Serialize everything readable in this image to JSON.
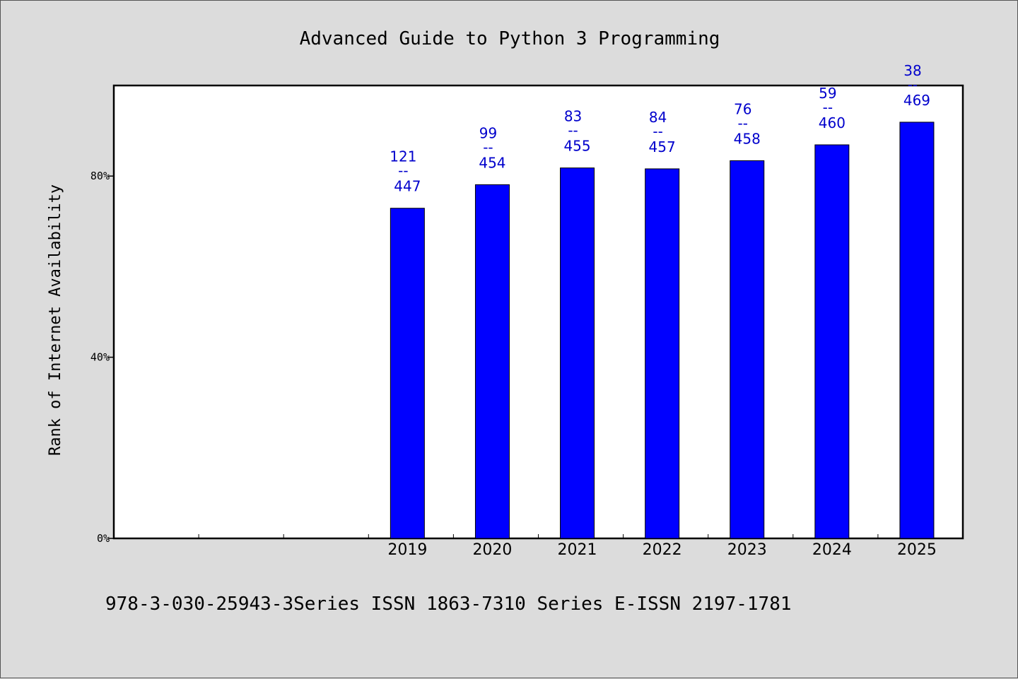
{
  "colors": {
    "bar": "#0000ff",
    "label": "#0000cc",
    "background": "#dcdcdc",
    "plot_bg": "#ffffff"
  },
  "footer": "978-3-030-25943-3Series ISSN 1863-7310 Series E-ISSN 2197-1781",
  "chart_data": {
    "type": "bar",
    "title": "Advanced Guide to Python 3 Programming",
    "xlabel": "",
    "ylabel": "Rank of Internet Availability",
    "categories": [
      "",
      "",
      "",
      "2019",
      "2020",
      "2021",
      "2022",
      "2023",
      "2024",
      "2025"
    ],
    "values": [
      null,
      null,
      null,
      72.9,
      78.1,
      81.8,
      81.6,
      83.4,
      86.9,
      91.9
    ],
    "labels_top": [
      "",
      "",
      "",
      "121",
      "99",
      "83",
      "84",
      "76",
      "59",
      "38"
    ],
    "labels_bottom": [
      "",
      "",
      "",
      "447",
      "454",
      "455",
      "457",
      "458",
      "460",
      "469"
    ],
    "label_separator": "--",
    "yticks": [
      0,
      40,
      80
    ],
    "ytick_labels": [
      "0%",
      "40%",
      "80%"
    ],
    "ylim": [
      0,
      100
    ],
    "grid": false,
    "legend": "none"
  }
}
